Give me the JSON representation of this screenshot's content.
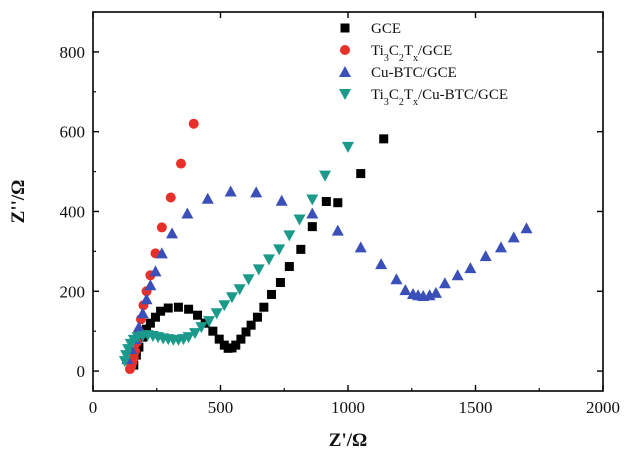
{
  "chart_data": {
    "type": "scatter",
    "xlabel": "Z'/Ω",
    "ylabel": "Z''/Ω",
    "xlim": [
      0,
      2000
    ],
    "ylim": [
      -50,
      900
    ],
    "xticks": [
      0,
      500,
      1000,
      1500,
      2000
    ],
    "yticks": [
      0,
      200,
      400,
      600,
      800
    ],
    "grid": false,
    "legend_position": "top-right",
    "series": [
      {
        "name": "GCE",
        "legend_parts": [
          {
            "t": "GCE"
          }
        ],
        "marker": "square",
        "color": "#000000",
        "points": [
          [
            160,
            15
          ],
          [
            170,
            40
          ],
          [
            180,
            60
          ],
          [
            195,
            85
          ],
          [
            210,
            105
          ],
          [
            225,
            120
          ],
          [
            245,
            135
          ],
          [
            265,
            150
          ],
          [
            295,
            158
          ],
          [
            335,
            160
          ],
          [
            375,
            155
          ],
          [
            410,
            140
          ],
          [
            440,
            120
          ],
          [
            470,
            100
          ],
          [
            495,
            80
          ],
          [
            515,
            65
          ],
          [
            530,
            57
          ],
          [
            545,
            58
          ],
          [
            560,
            65
          ],
          [
            580,
            80
          ],
          [
            600,
            98
          ],
          [
            620,
            115
          ],
          [
            645,
            135
          ],
          [
            670,
            160
          ],
          [
            700,
            192
          ],
          [
            735,
            222
          ],
          [
            770,
            262
          ],
          [
            815,
            305
          ],
          [
            860,
            362
          ],
          [
            915,
            425
          ],
          [
            960,
            422
          ],
          [
            1050,
            495
          ],
          [
            1140,
            582
          ]
        ]
      },
      {
        "name": "Ti3C2Tx/GCE",
        "legend_parts": [
          {
            "t": "Ti"
          },
          {
            "t": "3",
            "sub": true
          },
          {
            "t": "C"
          },
          {
            "t": "2",
            "sub": true
          },
          {
            "t": "T"
          },
          {
            "t": "x",
            "sub": true
          },
          {
            "t": "/GCE"
          }
        ],
        "marker": "circle",
        "color": "#e8302a",
        "points": [
          [
            145,
            5
          ],
          [
            150,
            12
          ],
          [
            155,
            22
          ],
          [
            160,
            35
          ],
          [
            165,
            50
          ],
          [
            172,
            72
          ],
          [
            180,
            100
          ],
          [
            188,
            130
          ],
          [
            198,
            165
          ],
          [
            210,
            200
          ],
          [
            225,
            240
          ],
          [
            245,
            295
          ],
          [
            270,
            360
          ],
          [
            305,
            435
          ],
          [
            345,
            520
          ],
          [
            395,
            620
          ]
        ]
      },
      {
        "name": "Cu-BTC/GCE",
        "legend_parts": [
          {
            "t": "Cu-BTC/GCE"
          }
        ],
        "marker": "triangle-up",
        "color": "#3b4fb8",
        "points": [
          [
            135,
            30
          ],
          [
            150,
            55
          ],
          [
            165,
            80
          ],
          [
            180,
            110
          ],
          [
            195,
            145
          ],
          [
            210,
            180
          ],
          [
            225,
            215
          ],
          [
            245,
            250
          ],
          [
            270,
            295
          ],
          [
            310,
            345
          ],
          [
            370,
            395
          ],
          [
            450,
            432
          ],
          [
            540,
            450
          ],
          [
            640,
            448
          ],
          [
            740,
            427
          ],
          [
            860,
            395
          ],
          [
            960,
            352
          ],
          [
            1050,
            310
          ],
          [
            1130,
            268
          ],
          [
            1190,
            230
          ],
          [
            1225,
            203
          ],
          [
            1255,
            193
          ],
          [
            1275,
            190
          ],
          [
            1295,
            188
          ],
          [
            1320,
            190
          ],
          [
            1345,
            196
          ],
          [
            1380,
            220
          ],
          [
            1430,
            240
          ],
          [
            1480,
            258
          ],
          [
            1540,
            288
          ],
          [
            1600,
            310
          ],
          [
            1650,
            335
          ],
          [
            1700,
            358
          ]
        ]
      },
      {
        "name": "Ti3C2Tx/Cu-BTC/GCE",
        "legend_parts": [
          {
            "t": "Ti"
          },
          {
            "t": "3",
            "sub": true
          },
          {
            "t": "C"
          },
          {
            "t": "2",
            "sub": true
          },
          {
            "t": "T"
          },
          {
            "t": "x",
            "sub": true
          },
          {
            "t": "/Cu-BTC/GCE"
          }
        ],
        "marker": "triangle-down",
        "color": "#1b9a8c",
        "points": [
          [
            125,
            25
          ],
          [
            130,
            40
          ],
          [
            138,
            55
          ],
          [
            148,
            68
          ],
          [
            160,
            78
          ],
          [
            175,
            85
          ],
          [
            195,
            88
          ],
          [
            215,
            90
          ],
          [
            235,
            88
          ],
          [
            255,
            85
          ],
          [
            275,
            82
          ],
          [
            295,
            80
          ],
          [
            315,
            78
          ],
          [
            335,
            78
          ],
          [
            355,
            80
          ],
          [
            375,
            85
          ],
          [
            400,
            95
          ],
          [
            425,
            110
          ],
          [
            455,
            125
          ],
          [
            485,
            145
          ],
          [
            515,
            165
          ],
          [
            545,
            185
          ],
          [
            575,
            205
          ],
          [
            610,
            230
          ],
          [
            650,
            255
          ],
          [
            690,
            280
          ],
          [
            730,
            305
          ],
          [
            770,
            340
          ],
          [
            810,
            380
          ],
          [
            860,
            430
          ],
          [
            910,
            490
          ],
          [
            1000,
            562
          ]
        ]
      }
    ]
  }
}
